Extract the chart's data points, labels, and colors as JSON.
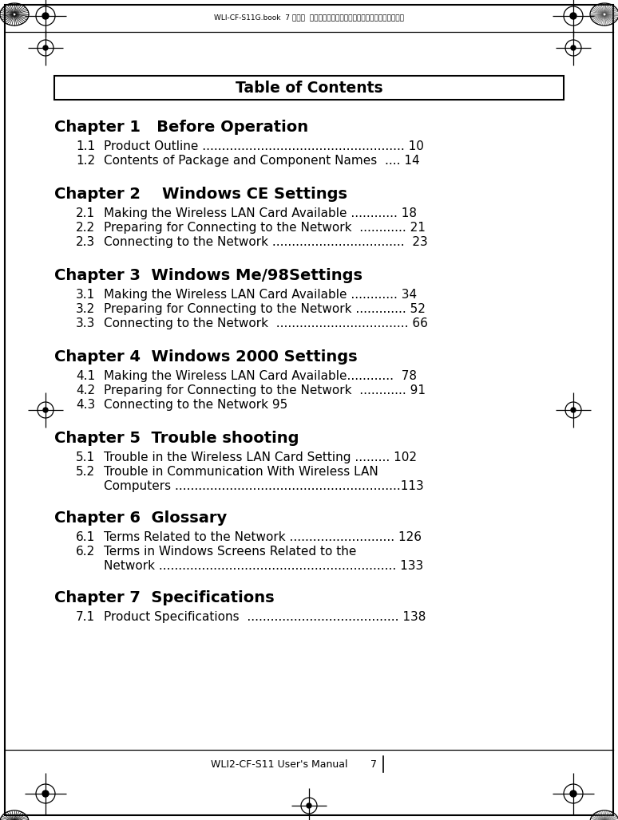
{
  "bg_color": "#ffffff",
  "header_text": "Table of Contents",
  "chapter_fontsize": 14,
  "section_fontsize": 11,
  "chapters": [
    {
      "title": "Chapter 1   Before Operation",
      "sections": [
        {
          "num": "1.1",
          "text": "Product Outline .................................................... 10",
          "wrap": false
        },
        {
          "num": "1.2",
          "text": "Contents of Package and Component Names  .... 14",
          "wrap": false
        }
      ]
    },
    {
      "title": "Chapter 2    Windows CE Settings",
      "sections": [
        {
          "num": "2.1",
          "text": "Making the Wireless LAN Card Available ............ 18",
          "wrap": false
        },
        {
          "num": "2.2",
          "text": "Preparing for Connecting to the Network  ............ 21",
          "wrap": false
        },
        {
          "num": "2.3",
          "text": "Connecting to the Network ..................................  23",
          "wrap": false
        }
      ]
    },
    {
      "title": "Chapter 3  Windows Me/98Settings",
      "sections": [
        {
          "num": "3.1",
          "text": "Making the Wireless LAN Card Available ............ 34",
          "wrap": false
        },
        {
          "num": "3.2",
          "text": "Preparing for Connecting to the Network ............. 52",
          "wrap": false
        },
        {
          "num": "3.3",
          "text": "Connecting to the Network  .................................. 66",
          "wrap": false
        }
      ]
    },
    {
      "title": "Chapter 4  Windows 2000 Settings",
      "sections": [
        {
          "num": "4.1",
          "text": "Making the Wireless LAN Card Available............  78",
          "wrap": false
        },
        {
          "num": "4.2",
          "text": "Preparing for Connecting to the Network  ............ 91",
          "wrap": false
        },
        {
          "num": "4.3",
          "text": "Connecting to the Network 95",
          "wrap": false
        }
      ]
    },
    {
      "title": "Chapter 5  Trouble shooting",
      "sections": [
        {
          "num": "5.1",
          "text": "Trouble in the Wireless LAN Card Setting ......... 102",
          "wrap": false
        },
        {
          "num": "5.2",
          "text": "Trouble in Communication With Wireless LAN",
          "text2": "Computers ..........................................................113",
          "wrap": true
        }
      ]
    },
    {
      "title": "Chapter 6  Glossary",
      "sections": [
        {
          "num": "6.1",
          "text": "Terms Related to the Network ........................... 126",
          "wrap": false
        },
        {
          "num": "6.2",
          "text": "Terms in Windows Screens Related to the",
          "text2": "Network ............................................................. 133",
          "wrap": true
        }
      ]
    },
    {
      "title": "Chapter 7  Specifications",
      "sections": [
        {
          "num": "7.1",
          "text": "Product Specifications  ....................................... 138",
          "wrap": false
        }
      ]
    }
  ],
  "footer_text": "WLI2-CF-S11 User's Manual",
  "footer_page": "7",
  "header_stamp_text": "WLI-CF-S11G.book  7 ページ  ２００２年２月２７日　水曜日　午後９時１０分"
}
